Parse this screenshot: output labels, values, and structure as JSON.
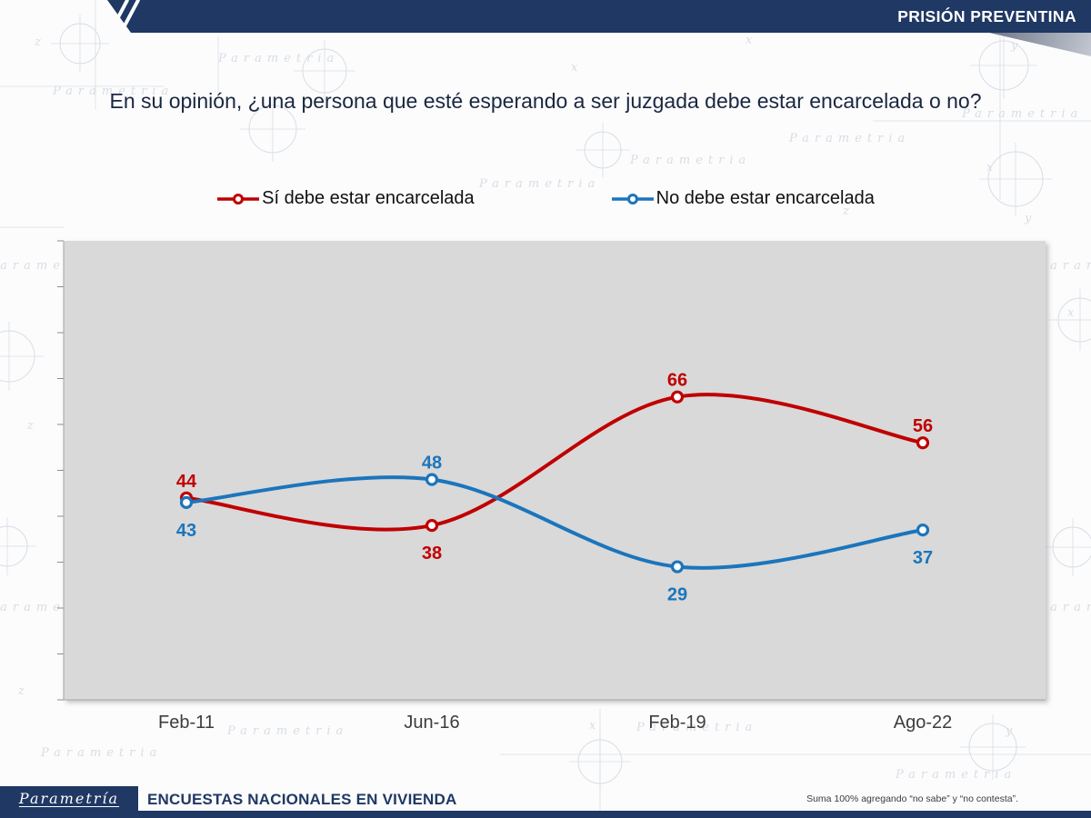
{
  "header": {
    "ribbon_title": "PRISIÓN PREVENTINA"
  },
  "title": "En su opinión, ¿una persona que esté esperando a ser juzgada debe estar encarcelada o no?",
  "chart_data": {
    "type": "line",
    "categories": [
      "Feb-11",
      "Jun-16",
      "Feb-19",
      "Ago-22"
    ],
    "series": [
      {
        "name": "Sí debe estar encarcelada",
        "color": "#C00000",
        "values": [
          44,
          38,
          66,
          56
        ]
      },
      {
        "name": "No debe estar encarcelada",
        "color": "#1B75BC",
        "values": [
          43,
          48,
          29,
          37
        ]
      }
    ],
    "ylim": [
      0,
      100
    ],
    "y_tick_step": 10,
    "grid": false,
    "smooth": true,
    "legend_position": "top",
    "plot_background": "#D9D9D9",
    "data_labels": true
  },
  "footer": {
    "logo_text": "Parametría",
    "subtitle": "ENCUESTAS NACIONALES EN VIVIENDA",
    "note": "Suma 100% agregando “no sabe” y “no contesta”."
  },
  "watermark": {
    "text": "Parametria"
  },
  "colors": {
    "navy": "#1F3864",
    "fold": "#7C8494"
  }
}
